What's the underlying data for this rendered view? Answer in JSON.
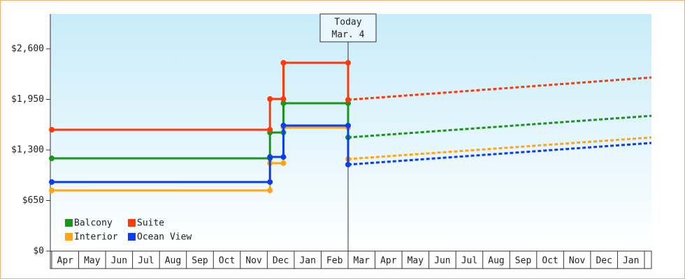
{
  "chart_data": {
    "type": "line",
    "style": "step",
    "ylim": [
      0,
      3048
    ],
    "yticks": [
      {
        "value": 0,
        "label": "$0"
      },
      {
        "value": 650,
        "label": "$650"
      },
      {
        "value": 1300,
        "label": "$1,300"
      },
      {
        "value": 1950,
        "label": "$1,950"
      },
      {
        "value": 2600,
        "label": "$2,600"
      }
    ],
    "xlim": [
      0,
      22.26
    ],
    "xticks": [
      {
        "value": 0.5,
        "label": "Apr"
      },
      {
        "value": 1.5,
        "label": "May"
      },
      {
        "value": 2.5,
        "label": "Jun"
      },
      {
        "value": 3.5,
        "label": "Jul"
      },
      {
        "value": 4.5,
        "label": "Aug"
      },
      {
        "value": 5.5,
        "label": "Sep"
      },
      {
        "value": 6.5,
        "label": "Oct"
      },
      {
        "value": 7.5,
        "label": "Nov"
      },
      {
        "value": 8.5,
        "label": "Dec"
      },
      {
        "value": 9.5,
        "label": "Jan"
      },
      {
        "value": 10.5,
        "label": "Feb"
      },
      {
        "value": 11.5,
        "label": "Mar"
      },
      {
        "value": 12.5,
        "label": "Apr"
      },
      {
        "value": 13.5,
        "label": "May"
      },
      {
        "value": 14.5,
        "label": "Jun"
      },
      {
        "value": 15.5,
        "label": "Jul"
      },
      {
        "value": 16.5,
        "label": "Aug"
      },
      {
        "value": 17.5,
        "label": "Sep"
      },
      {
        "value": 18.5,
        "label": "Oct"
      },
      {
        "value": 19.5,
        "label": "Nov"
      },
      {
        "value": 20.5,
        "label": "Dec"
      },
      {
        "value": 21.5,
        "label": "Jan"
      }
    ],
    "today": {
      "x": 11,
      "lines": [
        "Today",
        "Mar. 4"
      ]
    },
    "legend": "bottom-left",
    "series": [
      {
        "name": "Balcony",
        "color": "#17961a",
        "x": [
          0,
          8.1,
          8.1,
          8.6,
          8.6,
          11,
          11,
          22.26
        ],
        "values": [
          1192,
          1192,
          1524,
          1524,
          1900,
          1900,
          1461,
          1739
        ]
      },
      {
        "name": "Suite",
        "color": "#ff3a0a",
        "x": [
          0,
          8.1,
          8.1,
          8.6,
          8.6,
          11,
          11,
          22.26
        ],
        "values": [
          1560,
          1560,
          1955,
          1955,
          2420,
          2420,
          1945,
          2232
        ]
      },
      {
        "name": "Interior",
        "color": "#ffa512",
        "x": [
          0,
          8.1,
          8.1,
          8.6,
          8.6,
          11,
          11,
          22.26
        ],
        "values": [
          780,
          780,
          1130,
          1130,
          1587,
          1587,
          1183,
          1461
        ]
      },
      {
        "name": "Ocean View",
        "color": "#0a3cf0",
        "x": [
          0,
          8.1,
          8.1,
          8.6,
          8.6,
          11,
          11,
          22.26
        ],
        "values": [
          888,
          888,
          1210,
          1210,
          1614,
          1614,
          1112,
          1390
        ]
      }
    ]
  }
}
